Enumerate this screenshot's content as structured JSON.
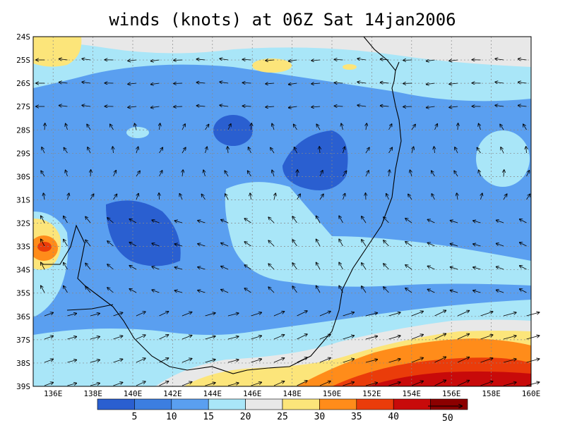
{
  "title": "winds (knots) at 06Z Sat 14jan2006",
  "map": {
    "lon_range": [
      135,
      160
    ],
    "lat_range": [
      -39,
      -24
    ],
    "lon_labels": [
      "136E",
      "138E",
      "140E",
      "142E",
      "144E",
      "146E",
      "148E",
      "150E",
      "152E",
      "154E",
      "156E",
      "158E",
      "160E"
    ],
    "lat_labels": [
      "24S",
      "25S",
      "26S",
      "27S",
      "28S",
      "29S",
      "30S",
      "31S",
      "32S",
      "33S",
      "34S",
      "35S",
      "36S",
      "37S",
      "38S",
      "39S"
    ]
  },
  "colorbar": {
    "colors": [
      "#2a5fd0",
      "#3c7ee0",
      "#5a9ff0",
      "#a9e6f8",
      "#e8e8e8",
      "#fce57a",
      "#ff8c1a",
      "#ea3c0a",
      "#c80a0a",
      "#8c0000"
    ],
    "labels": [
      "5",
      "10",
      "15",
      "20",
      "25",
      "30",
      "35",
      "40"
    ],
    "reference_vector_label": "50"
  }
}
